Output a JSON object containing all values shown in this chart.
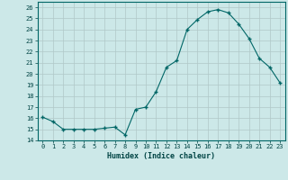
{
  "x": [
    0,
    1,
    2,
    3,
    4,
    5,
    6,
    7,
    8,
    9,
    10,
    11,
    12,
    13,
    14,
    15,
    16,
    17,
    18,
    19,
    20,
    21,
    22,
    23
  ],
  "y": [
    16.1,
    15.7,
    15.0,
    15.0,
    15.0,
    15.0,
    15.1,
    15.2,
    14.5,
    16.8,
    17.0,
    18.4,
    20.6,
    21.2,
    24.0,
    24.9,
    25.6,
    25.8,
    25.5,
    24.5,
    23.2,
    21.4,
    20.6,
    19.2
  ],
  "bg_color": "#cce8e8",
  "line_color": "#006666",
  "marker_color": "#006666",
  "grid_color": "#b0c8c8",
  "xlabel": "Humidex (Indice chaleur)",
  "xlim": [
    -0.5,
    23.5
  ],
  "ylim": [
    14,
    26.5
  ],
  "yticks": [
    14,
    15,
    16,
    17,
    18,
    19,
    20,
    21,
    22,
    23,
    24,
    25,
    26
  ],
  "xticks": [
    0,
    1,
    2,
    3,
    4,
    5,
    6,
    7,
    8,
    9,
    10,
    11,
    12,
    13,
    14,
    15,
    16,
    17,
    18,
    19,
    20,
    21,
    22,
    23
  ],
  "tick_color": "#004444",
  "label_color": "#004444"
}
